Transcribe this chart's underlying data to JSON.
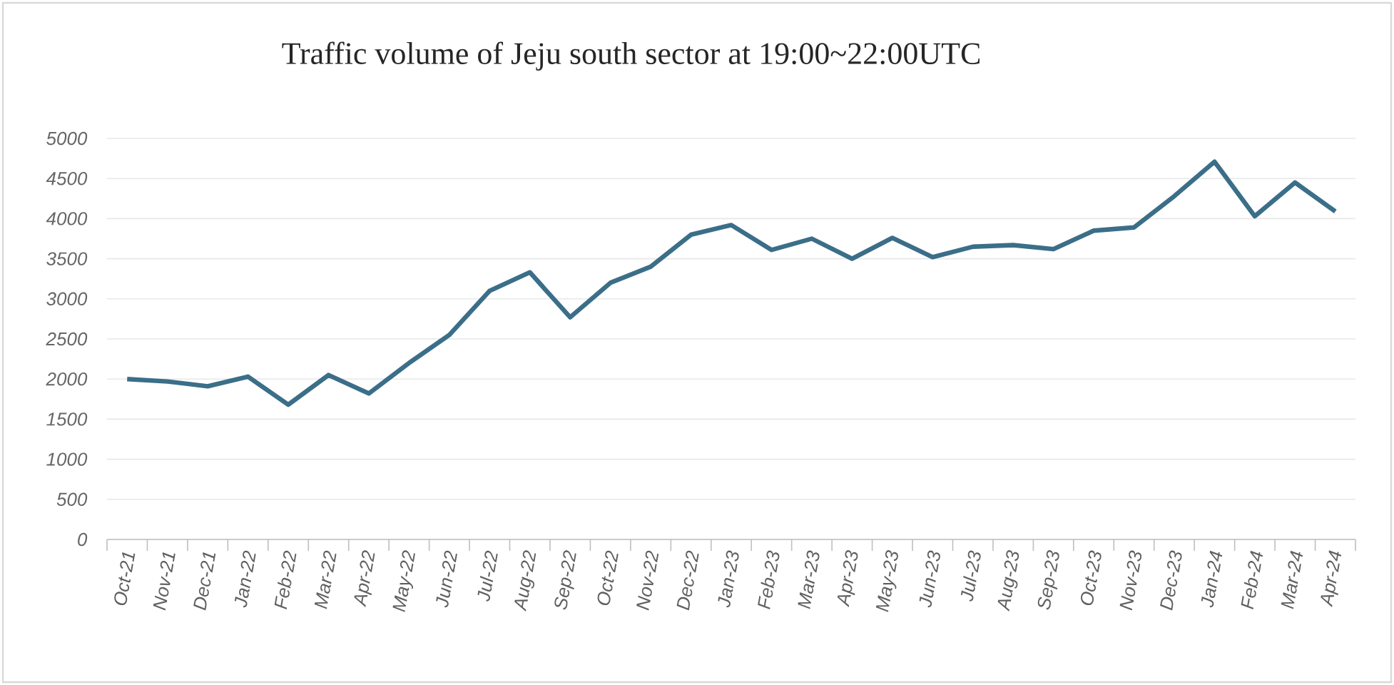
{
  "chart_data": {
    "type": "line",
    "title": "Traffic volume of Jeju south sector at 19:00~22:00UTC",
    "categories": [
      "Oct-21",
      "Nov-21",
      "Dec-21",
      "Jan-22",
      "Feb-22",
      "Mar-22",
      "Apr-22",
      "May-22",
      "Jun-22",
      "Jul-22",
      "Aug-22",
      "Sep-22",
      "Oct-22",
      "Nov-22",
      "Dec-22",
      "Jan-23",
      "Feb-23",
      "Mar-23",
      "Apr-23",
      "May-23",
      "Jun-23",
      "Jul-23",
      "Aug-23",
      "Sep-23",
      "Oct-23",
      "Nov-23",
      "Dec-23",
      "Jan-24",
      "Feb-24",
      "Mar-24",
      "Apr-24"
    ],
    "series": [
      {
        "color": "#3b6e88",
        "values": [
          2000,
          1970,
          1910,
          2030,
          1680,
          2050,
          1820,
          2200,
          2550,
          3100,
          3330,
          2770,
          3200,
          3400,
          3800,
          3920,
          3610,
          3750,
          3500,
          3760,
          3520,
          3650,
          3670,
          3620,
          3850,
          3890,
          4280,
          4710,
          4030,
          4450,
          4090
        ]
      }
    ],
    "ylim": [
      0,
      5000
    ],
    "yticks": [
      0,
      500,
      1000,
      1500,
      2000,
      2500,
      3000,
      3500,
      4000,
      4500,
      5000
    ],
    "grid": "y",
    "legend": false,
    "marker": "none",
    "line_style": "solid"
  }
}
